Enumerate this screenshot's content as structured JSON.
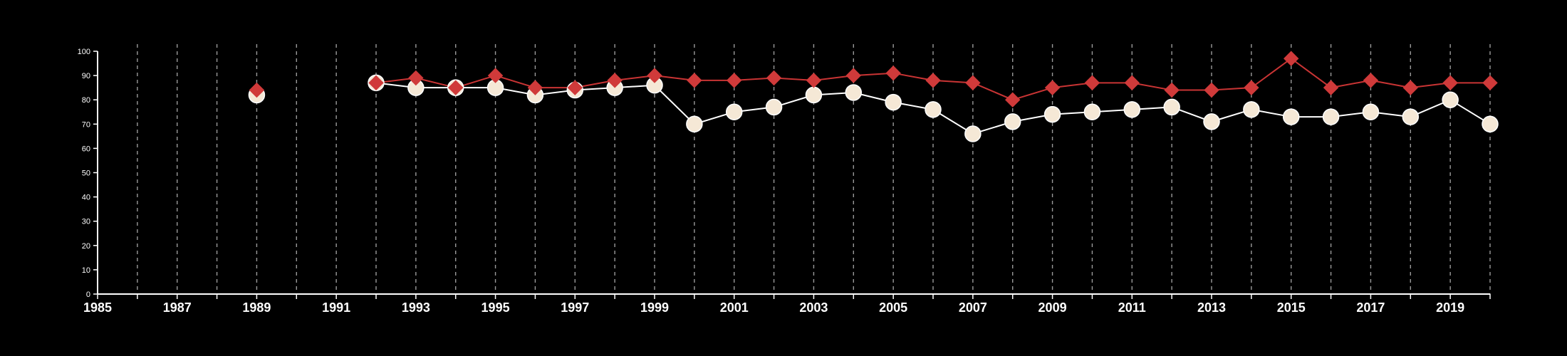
{
  "chart_data": {
    "type": "line",
    "title": "",
    "xlabel": "",
    "ylabel": "",
    "xlim": [
      1985,
      2020
    ],
    "ylim": [
      0,
      100
    ],
    "x_ticks": [
      1985,
      1986,
      1987,
      1988,
      1989,
      1990,
      1991,
      1992,
      1993,
      1994,
      1995,
      1996,
      1997,
      1998,
      1999,
      2000,
      2001,
      2002,
      2003,
      2004,
      2005,
      2006,
      2007,
      2008,
      2009,
      2010,
      2011,
      2012,
      2013,
      2014,
      2015,
      2016,
      2017,
      2018,
      2019,
      2020
    ],
    "x_tick_labels": [
      "1985",
      "1987",
      "1989",
      "1991",
      "1993",
      "1995",
      "1997",
      "1999",
      "2001",
      "2003",
      "2005",
      "2007",
      "2009",
      "2011",
      "2013",
      "2015",
      "2017",
      "2019"
    ],
    "y_ticks": [
      0,
      10,
      20,
      30,
      40,
      50,
      60,
      70,
      80,
      90,
      100
    ],
    "y_tick_labels": [
      "0",
      "10",
      "20",
      "30",
      "40",
      "50",
      "60",
      "70",
      "80",
      "90",
      "100"
    ],
    "grid": "vertical dashed lines at every year",
    "legend": "none",
    "series": [
      {
        "color": "#f5e8d6",
        "line_color": "#ffffff",
        "marker": "circle",
        "points": [
          [
            1989,
            82
          ],
          [
            1992,
            87
          ],
          [
            1993,
            85
          ],
          [
            1994,
            85
          ],
          [
            1995,
            85
          ],
          [
            1996,
            82
          ],
          [
            1997,
            84
          ],
          [
            1998,
            85
          ],
          [
            1999,
            86
          ],
          [
            2000,
            70
          ],
          [
            2001,
            75
          ],
          [
            2002,
            77
          ],
          [
            2003,
            82
          ],
          [
            2004,
            83
          ],
          [
            2005,
            79
          ],
          [
            2006,
            76
          ],
          [
            2007,
            66
          ],
          [
            2008,
            71
          ],
          [
            2009,
            74
          ],
          [
            2010,
            75
          ],
          [
            2011,
            76
          ],
          [
            2012,
            77
          ],
          [
            2013,
            71
          ],
          [
            2014,
            76
          ],
          [
            2015,
            73
          ],
          [
            2016,
            73
          ],
          [
            2017,
            75
          ],
          [
            2018,
            73
          ],
          [
            2019,
            80
          ],
          [
            2020,
            70
          ]
        ]
      },
      {
        "color": "#d03a3a",
        "line_color": "#c93434",
        "marker": "diamond",
        "points": [
          [
            1989,
            84
          ],
          [
            1992,
            87
          ],
          [
            1993,
            89
          ],
          [
            1994,
            85
          ],
          [
            1995,
            90
          ],
          [
            1996,
            85
          ],
          [
            1997,
            85
          ],
          [
            1998,
            88
          ],
          [
            1999,
            90
          ],
          [
            2000,
            88
          ],
          [
            2001,
            88
          ],
          [
            2002,
            89
          ],
          [
            2003,
            88
          ],
          [
            2004,
            90
          ],
          [
            2005,
            91
          ],
          [
            2006,
            88
          ],
          [
            2007,
            87
          ],
          [
            2008,
            80
          ],
          [
            2009,
            85
          ],
          [
            2010,
            87
          ],
          [
            2011,
            87
          ],
          [
            2012,
            84
          ],
          [
            2013,
            84
          ],
          [
            2014,
            85
          ],
          [
            2015,
            97
          ],
          [
            2016,
            85
          ],
          [
            2017,
            88
          ],
          [
            2018,
            85
          ],
          [
            2019,
            87
          ],
          [
            2020,
            87
          ]
        ]
      }
    ]
  }
}
